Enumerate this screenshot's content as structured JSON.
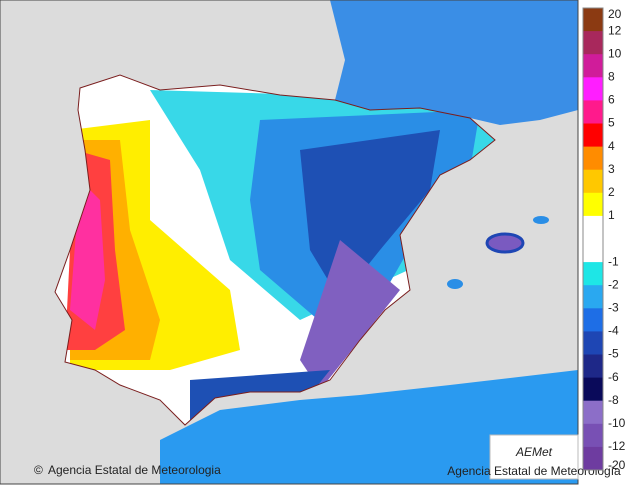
{
  "legend": {
    "ticks": [
      20,
      12,
      10,
      8,
      6,
      5,
      4,
      3,
      2,
      1,
      null,
      -1,
      -2,
      -3,
      -4,
      -5,
      -6,
      -8,
      -10,
      -12,
      -20
    ],
    "colors": [
      "#8b3a12",
      "#a8285c",
      "#d01c9a",
      "#ff1eff",
      "#ff1a8c",
      "#ff0000",
      "#ff8c00",
      "#ffc800",
      "#ffff00",
      "#ffffff",
      "#ffffff",
      "#1ee6e6",
      "#2aa8f0",
      "#1e6ee6",
      "#1e46b4",
      "#1e2888",
      "#0a0a5a",
      "#8c6ec8",
      "#7850b4",
      "#6e3ca0"
    ]
  },
  "footer": {
    "copyright": "©",
    "text": "Agencia Estatal de Meteorologia"
  },
  "logo": {
    "name": "AEMet",
    "subtitle": "Agencia Estatal de Meteorología"
  }
}
